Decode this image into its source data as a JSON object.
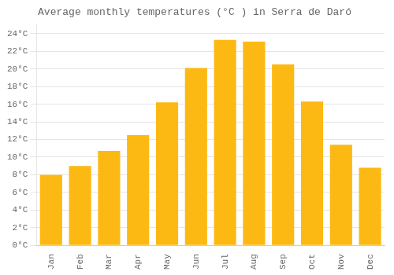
{
  "chart_data": {
    "type": "bar",
    "title": "Average monthly temperatures (°C ) in Serra de Daró",
    "categories": [
      "Jan",
      "Feb",
      "Mar",
      "Apr",
      "May",
      "Jun",
      "Jul",
      "Aug",
      "Sep",
      "Oct",
      "Nov",
      "Dec"
    ],
    "values": [
      8.0,
      9.0,
      10.7,
      12.5,
      16.2,
      20.1,
      23.3,
      23.1,
      20.5,
      16.3,
      11.4,
      8.8
    ],
    "color": "#FDB913",
    "ylim": [
      0,
      25
    ],
    "yticks": [
      {
        "value": 0,
        "label": "0°C"
      },
      {
        "value": 2,
        "label": "2°C"
      },
      {
        "value": 4,
        "label": "4°C"
      },
      {
        "value": 6,
        "label": "6°C"
      },
      {
        "value": 8,
        "label": "8°C"
      },
      {
        "value": 10,
        "label": "10°C"
      },
      {
        "value": 12,
        "label": "12°C"
      },
      {
        "value": 14,
        "label": "14°C"
      },
      {
        "value": 16,
        "label": "16°C"
      },
      {
        "value": 18,
        "label": "18°C"
      },
      {
        "value": 20,
        "label": "20°C"
      },
      {
        "value": 22,
        "label": "22°C"
      },
      {
        "value": 24,
        "label": "24°C"
      }
    ],
    "grid": true
  }
}
